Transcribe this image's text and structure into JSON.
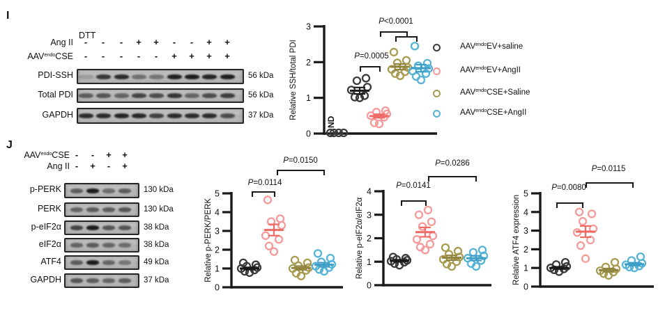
{
  "figure_background": "#ffffff",
  "colors": {
    "black_group": "#3a3a3a",
    "pink_group": "#f59a9a",
    "pink_stats": "#ef6a65",
    "olive_group": "#a79b51",
    "olive_stats": "#90843f",
    "blue_group": "#56b3d6",
    "blue_stats": "#3d9ec6",
    "axis": "#1a1a1a"
  },
  "panel_I": {
    "label": "I",
    "blot": {
      "dtt": "DTT",
      "conditions": [
        {
          "parts": [
            {
              "t": "Ang II"
            }
          ],
          "values": [
            "-",
            "-",
            "-",
            "+",
            "+",
            "-",
            "-",
            "+",
            "+"
          ]
        },
        {
          "parts": [
            {
              "t": "AAV"
            },
            {
              "t": "endo",
              "sup": true
            },
            {
              "t": "CSE"
            }
          ],
          "values": [
            "-",
            "-",
            "-",
            "-",
            "-",
            "+",
            "+",
            "+",
            "+"
          ]
        }
      ],
      "rows": [
        {
          "label": "PDI-SSH",
          "kda": "56 kDa",
          "intensities": [
            0.15,
            0.78,
            0.85,
            0.42,
            0.4,
            0.92,
            0.95,
            0.9,
            0.95
          ]
        },
        {
          "label": "Total PDI",
          "kda": "56 kDa",
          "intensities": [
            0.55,
            0.6,
            0.5,
            0.7,
            0.65,
            0.8,
            0.5,
            0.65,
            0.75
          ]
        },
        {
          "label": "GAPDH",
          "kda": "37 kDa",
          "intensities": [
            0.85,
            0.85,
            0.9,
            0.88,
            0.72,
            0.85,
            0.85,
            0.85,
            0.65
          ]
        }
      ]
    },
    "legend": [
      {
        "color": "#3a3a3a",
        "parts": [
          {
            "t": "AAV"
          },
          {
            "t": "endo",
            "sup": true
          },
          {
            "t": "EV+saline"
          }
        ]
      },
      {
        "color": "#f59a9a",
        "parts": [
          {
            "t": "AAV"
          },
          {
            "t": "endo",
            "sup": true
          },
          {
            "t": "EV+AngII"
          }
        ]
      },
      {
        "color": "#a79b51",
        "parts": [
          {
            "t": "AAV"
          },
          {
            "t": "endo",
            "sup": true
          },
          {
            "t": "CSE+Saline"
          }
        ]
      },
      {
        "color": "#56b3d6",
        "parts": [
          {
            "t": "AAV"
          },
          {
            "t": "endo",
            "sup": true
          },
          {
            "t": "CSE+AngII"
          }
        ]
      }
    ]
  },
  "panel_J": {
    "label": "J",
    "blot": {
      "conditions": [
        {
          "parts": [
            {
              "t": "AAV"
            },
            {
              "t": "endo",
              "sup": true
            },
            {
              "t": "CSE"
            }
          ],
          "values": [
            "-",
            "-",
            "+",
            "+"
          ]
        },
        {
          "parts": [
            {
              "t": "Ang II"
            }
          ],
          "values": [
            "-",
            "+",
            "-",
            "+"
          ]
        }
      ],
      "rows": [
        {
          "label": "p-PERK",
          "kda": "130 kDa",
          "intensities": [
            0.55,
            0.95,
            0.45,
            0.55
          ]
        },
        {
          "label": "PERK",
          "kda": "130 kDa",
          "intensities": [
            0.5,
            0.55,
            0.55,
            0.6
          ]
        },
        {
          "label": "p-eIF2α",
          "kda": "38 kDa",
          "intensities": [
            0.7,
            0.95,
            0.6,
            0.6
          ]
        },
        {
          "label": "eIF2α",
          "kda": "38 kDa",
          "intensities": [
            0.5,
            0.55,
            0.5,
            0.45
          ]
        },
        {
          "label": "ATF4",
          "kda": "49 kDa",
          "intensities": [
            0.55,
            0.95,
            0.5,
            0.4
          ]
        },
        {
          "label": "GAPDH",
          "kda": "37 kDa",
          "intensities": [
            0.6,
            0.55,
            0.5,
            0.55
          ]
        }
      ]
    }
  },
  "chart_data": [
    {
      "id": "ssh",
      "type": "scatter",
      "ylabel": "Relative SSH/total PDI",
      "ylim": [
        0,
        3
      ],
      "yticks": [
        0,
        1,
        2,
        3
      ],
      "groups": [
        {
          "name": "ND",
          "color": "#3a3a3a",
          "bar_color": "#1a1a1a",
          "values": [
            0.02,
            0.02,
            0.02,
            0.02
          ],
          "annotation": "ND"
        },
        {
          "name": "AAVendoEV+saline",
          "color": "#3a3a3a",
          "bar_color": "#1a1a1a",
          "values": [
            1.0,
            1.02,
            1.06,
            1.22,
            1.3,
            1.48,
            1.55
          ],
          "mean": 1.2,
          "sem": 0.09
        },
        {
          "name": "AAVendoEV+AngII",
          "color": "#f59a9a",
          "bar_color": "#ef6a65",
          "values": [
            0.27,
            0.3,
            0.46,
            0.5,
            0.55,
            0.6,
            0.64
          ],
          "mean": 0.49,
          "sem": 0.05
        },
        {
          "name": "AAVendoCSE+Saline",
          "color": "#a79b51",
          "bar_color": "#90843f",
          "values": [
            1.62,
            1.68,
            1.73,
            1.8,
            1.85,
            1.98,
            2.05,
            2.28
          ],
          "mean": 1.87,
          "sem": 0.08
        },
        {
          "name": "AAVendoCSE+AngII",
          "color": "#56b3d6",
          "bar_color": "#3d9ec6",
          "values": [
            1.5,
            1.6,
            1.68,
            1.75,
            1.82,
            1.9,
            1.97,
            2.45
          ],
          "mean": 1.83,
          "sem": 0.1
        }
      ],
      "comparisons": [
        {
          "label": "P=0.0005",
          "pairs": [
            [
              1,
              2
            ]
          ]
        },
        {
          "label": "P<0.0001",
          "pairs": [
            [
              2,
              3
            ],
            [
              2,
              4
            ]
          ]
        }
      ]
    },
    {
      "id": "pperk",
      "type": "scatter",
      "ylabel": "Relative p-PERK/PERK",
      "ylim": [
        0,
        5
      ],
      "yticks": [
        0,
        1,
        2,
        3,
        4,
        5
      ],
      "groups": [
        {
          "name": "AAVendoEV+saline",
          "color": "#3a3a3a",
          "bar_color": "#1a1a1a",
          "values": [
            0.78,
            0.85,
            0.92,
            1.0,
            1.05,
            1.12,
            1.2,
            1.3
          ],
          "mean": 1.0,
          "sem": 0.06
        },
        {
          "name": "AAVendoEV+AngII",
          "color": "#f59a9a",
          "bar_color": "#ef6a65",
          "values": [
            1.9,
            2.2,
            2.55,
            2.75,
            3.3,
            3.5,
            3.65,
            4.65
          ],
          "mean": 3.05,
          "sem": 0.3
        },
        {
          "name": "AAVendoCSE+Saline",
          "color": "#a79b51",
          "bar_color": "#90843f",
          "values": [
            0.6,
            0.75,
            0.9,
            1.0,
            1.05,
            1.15,
            1.3,
            1.45
          ],
          "mean": 1.03,
          "sem": 0.1
        },
        {
          "name": "AAVendoCSE+AngII",
          "color": "#56b3d6",
          "bar_color": "#3d9ec6",
          "values": [
            0.85,
            0.95,
            1.05,
            1.12,
            1.22,
            1.35,
            1.55,
            1.8
          ],
          "mean": 1.2,
          "sem": 0.11
        }
      ],
      "comparisons": [
        {
          "label": "P=0.0114",
          "pairs": [
            [
              0,
              1
            ]
          ]
        },
        {
          "label": "P=0.0150",
          "pairs": [
            [
              1,
              3
            ]
          ]
        }
      ]
    },
    {
      "id": "peif",
      "type": "scatter",
      "ylabel": "Relative p-eIF2α/eIF2α",
      "ylim": [
        0,
        4
      ],
      "yticks": [
        0,
        1,
        2,
        3,
        4
      ],
      "groups": [
        {
          "name": "AAVendoEV+saline",
          "color": "#3a3a3a",
          "bar_color": "#1a1a1a",
          "values": [
            0.85,
            0.92,
            0.98,
            1.02,
            1.06,
            1.1,
            1.15,
            1.2
          ],
          "mean": 1.04,
          "sem": 0.04
        },
        {
          "name": "AAVendoEV+AngII",
          "color": "#f59a9a",
          "bar_color": "#ef6a65",
          "values": [
            1.5,
            1.62,
            1.75,
            1.95,
            2.1,
            2.5,
            2.7,
            3.0,
            3.2
          ],
          "mean": 2.26,
          "sem": 0.2
        },
        {
          "name": "AAVendoCSE+Saline",
          "color": "#a79b51",
          "bar_color": "#90843f",
          "values": [
            0.8,
            0.9,
            1.0,
            1.1,
            1.2,
            1.32,
            1.45,
            1.6
          ],
          "mean": 1.17,
          "sem": 0.1
        },
        {
          "name": "AAVendoCSE+AngII",
          "color": "#56b3d6",
          "bar_color": "#3d9ec6",
          "values": [
            0.8,
            0.92,
            1.05,
            1.15,
            1.25,
            1.4,
            1.5
          ],
          "mean": 1.15,
          "sem": 0.1
        }
      ],
      "comparisons": [
        {
          "label": "P=0.0141",
          "pairs": [
            [
              0,
              1
            ]
          ]
        },
        {
          "label": "P=0.0286",
          "pairs": [
            [
              1,
              3
            ]
          ]
        }
      ]
    },
    {
      "id": "atf4",
      "type": "scatter",
      "ylabel": "Relative ATF4 expression",
      "ylim": [
        0,
        5
      ],
      "yticks": [
        0,
        1,
        2,
        3,
        4,
        5
      ],
      "groups": [
        {
          "name": "AAVendoEV+saline",
          "color": "#3a3a3a",
          "bar_color": "#1a1a1a",
          "values": [
            0.8,
            0.9,
            0.95,
            1.0,
            1.08,
            1.18,
            1.3
          ],
          "mean": 1.0,
          "sem": 0.06
        },
        {
          "name": "AAVendoEV+AngII",
          "color": "#f59a9a",
          "bar_color": "#ef6a65",
          "values": [
            1.5,
            2.2,
            2.5,
            2.9,
            3.1,
            3.5,
            3.9,
            4.0
          ],
          "mean": 2.95,
          "sem": 0.3
        },
        {
          "name": "AAVendoCSE+Saline",
          "color": "#a79b51",
          "bar_color": "#90843f",
          "values": [
            0.6,
            0.7,
            0.78,
            0.85,
            0.95,
            1.05,
            1.3
          ],
          "mean": 0.88,
          "sem": 0.09
        },
        {
          "name": "AAVendoCSE+AngII",
          "color": "#56b3d6",
          "bar_color": "#3d9ec6",
          "values": [
            1.0,
            1.05,
            1.1,
            1.17,
            1.25,
            1.4,
            1.6
          ],
          "mean": 1.2,
          "sem": 0.08
        }
      ],
      "comparisons": [
        {
          "label": "P=0.0080",
          "pairs": [
            [
              0,
              1
            ]
          ]
        },
        {
          "label": "P=0.0115",
          "pairs": [
            [
              1,
              3
            ]
          ]
        }
      ]
    }
  ]
}
